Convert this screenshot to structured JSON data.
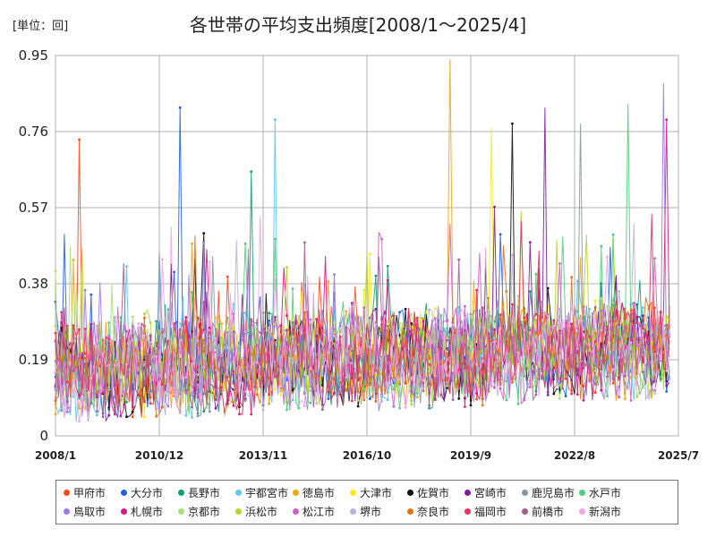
{
  "chart_data": {
    "type": "line",
    "title": "各世帯の平均支出頻度[2008/1～2025/4]",
    "unit_label": "[単位：回]",
    "ylim": [
      0,
      0.95
    ],
    "yticks": [
      "0",
      "0.19",
      "0.38",
      "0.57",
      "0.76",
      "0.95"
    ],
    "x_start": "2008/1",
    "x_end": "2025/7",
    "xticks": [
      "2008/1",
      "2010/12",
      "2013/11",
      "2016/10",
      "2019/9",
      "2022/8",
      "2025/7"
    ],
    "grid": true,
    "legend_position": "bottom",
    "series": [
      {
        "name": "甲府市",
        "color": "#ff4a1c"
      },
      {
        "name": "大分市",
        "color": "#1f5fe0"
      },
      {
        "name": "長野市",
        "color": "#12a06a"
      },
      {
        "name": "宇都宮市",
        "color": "#5ec7f0"
      },
      {
        "name": "徳島市",
        "color": "#f2a51a"
      },
      {
        "name": "大津市",
        "color": "#f6ea1e"
      },
      {
        "name": "佐賀市",
        "color": "#111111"
      },
      {
        "name": "宮崎市",
        "color": "#7f1ea0"
      },
      {
        "name": "鹿児島市",
        "color": "#8697a5"
      },
      {
        "name": "水戸市",
        "color": "#4fd07a"
      },
      {
        "name": "鳥取市",
        "color": "#9b7ae6"
      },
      {
        "name": "札幌市",
        "color": "#d6197c"
      },
      {
        "name": "京都市",
        "color": "#a9e07a"
      },
      {
        "name": "浜松市",
        "color": "#b8d42e"
      },
      {
        "name": "松江市",
        "color": "#cf60c6"
      },
      {
        "name": "堺市",
        "color": "#bdb0dc"
      },
      {
        "name": "奈良市",
        "color": "#e0721a"
      },
      {
        "name": "福岡市",
        "color": "#e8345a"
      },
      {
        "name": "前橋市",
        "color": "#a45e96"
      },
      {
        "name": "新潟市",
        "color": "#f2a6e6"
      }
    ],
    "notable_peaks": [
      {
        "x": "2008/9",
        "y": 0.74
      },
      {
        "x": "2011/7",
        "y": 0.82
      },
      {
        "x": "2013/7",
        "y": 0.66
      },
      {
        "x": "2014/3",
        "y": 0.79
      },
      {
        "x": "2019/2",
        "y": 0.94
      },
      {
        "x": "2020/4",
        "y": 0.77
      },
      {
        "x": "2020/11",
        "y": 0.78
      },
      {
        "x": "2021/10",
        "y": 0.82
      },
      {
        "x": "2022/10",
        "y": 0.78
      },
      {
        "x": "2024/2",
        "y": 0.83
      },
      {
        "x": "2025/2",
        "y": 0.88
      },
      {
        "x": "2025/3",
        "y": 0.79
      }
    ]
  }
}
